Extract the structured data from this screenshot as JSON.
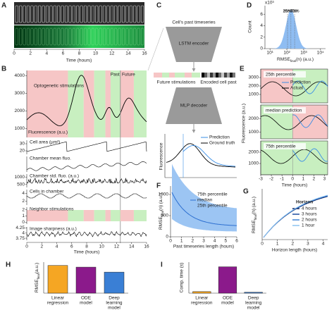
{
  "panels": {
    "A": {
      "label": "A",
      "xlim": [
        0,
        16
      ],
      "xticks": [
        0,
        2,
        4,
        6,
        8,
        10,
        12,
        14,
        16
      ],
      "xlabel": "Time (hours)"
    },
    "B": {
      "label": "B",
      "annotations": [
        "Optogenetic stimulations",
        "Past",
        "Future"
      ],
      "ylabel": "Fluorescence (a.u.)",
      "ylim": [
        500,
        4300
      ],
      "yticks": [
        1000,
        2000,
        3000,
        4000
      ],
      "tracks": [
        {
          "name": "Cell area (µm²)",
          "ylim": [
            15,
            35
          ],
          "yticks": [
            20,
            30
          ]
        },
        {
          "name": "Chamber mean fluo.",
          "ylim": [
            0,
            5000
          ],
          "yticks": []
        },
        {
          "name": "Chamber std. fluo. (a.u.)",
          "ylim": [
            300,
            1200
          ],
          "yticks": [
            500,
            1000
          ]
        },
        {
          "name": "Cells in chamber",
          "ylim": [
            1,
            5
          ],
          "yticks": [
            2,
            4
          ]
        },
        {
          "name": "Neighbor stimulations",
          "ylim": [
            -0.3,
            2.4
          ],
          "yticks": [
            0,
            1,
            2
          ]
        },
        {
          "name": "Image sharpness (a.u.)",
          "ylim": [
            3.65,
            4.3
          ],
          "yticks": [
            3.75,
            4,
            4.25
          ]
        }
      ],
      "xlim": [
        0,
        16
      ],
      "xticks": [
        0,
        2,
        4,
        6,
        8,
        10,
        12,
        14,
        16
      ],
      "xlabel": "Time (hours)"
    },
    "C": {
      "label": "C",
      "texts": [
        "Cell's past timeseries",
        "LSTM encoder",
        "Future stimulations",
        "Encoded cell past",
        "MLP decoder",
        "Fluorescence"
      ],
      "legend": [
        "Prediction",
        "Ground truth"
      ]
    },
    "D": {
      "label": "D",
      "ylabel": "Count",
      "xlabel": [
        "RMSE",
        "final",
        "(n) (a.u.)"
      ],
      "multiplier": "x10³",
      "markers": [
        "25%",
        "median",
        "75%"
      ],
      "xlim": [
        5,
        20000
      ],
      "xticks": [
        {
          "value": 10,
          "label": "10¹"
        },
        {
          "value": 100,
          "label": "10²"
        },
        {
          "value": 1000,
          "label": "10³"
        },
        {
          "value": 10000,
          "label": "10⁴"
        }
      ],
      "ylim": [
        0,
        7.5
      ],
      "yticks": [
        0,
        2,
        4,
        6
      ]
    },
    "E": {
      "label": "E",
      "ylabel": "Fluorescence (a.u.)",
      "xlabel": "Time (hours)",
      "xlim": [
        -3,
        3.3
      ],
      "xticks": [
        -3,
        -2,
        -1,
        0,
        1,
        2,
        3
      ],
      "legend": [
        "Prediction",
        "Actual"
      ],
      "subpanels": [
        {
          "title": "25th percentile",
          "ylim": [
            0,
            4000
          ],
          "yticks": [
            1000,
            2000,
            3000
          ]
        },
        {
          "title": "median prediction",
          "ylim": [
            500,
            3000
          ],
          "yticks": [
            1000,
            2000
          ]
        },
        {
          "title": "75th percentile",
          "ylim": [
            0,
            3000
          ],
          "yticks": [
            1000,
            2000
          ]
        }
      ]
    },
    "F": {
      "label": "F",
      "ylabel": [
        "RMSE",
        "final",
        "(n) (a.u.)"
      ],
      "xlabel": "Past timeseries length (hours)",
      "legend": [
        "75th percentile",
        "median",
        "25th percentile"
      ],
      "xlim": [
        0,
        6
      ],
      "xticks": [
        0,
        1,
        2,
        3,
        4,
        5,
        6
      ],
      "ylim": [
        0,
        1200
      ],
      "yticks": [
        0,
        500,
        1000
      ]
    },
    "G": {
      "label": "G",
      "ylabel": [
        "RMSE",
        "final",
        "(h) (a.u.)"
      ],
      "xlabel": "Horizon length (hours)",
      "xlim": [
        0,
        4.3
      ],
      "xticks": [
        0,
        1,
        2,
        3,
        4
      ],
      "legend_title": "Horizon",
      "series": [
        {
          "name": "4 hours",
          "color": "#0b1f5c"
        },
        {
          "name": "3 hours",
          "color": "#1f4fa0"
        },
        {
          "name": "2 hours",
          "color": "#3d82d6"
        },
        {
          "name": "1 hour",
          "color": "#8cc2f0"
        }
      ]
    },
    "H": {
      "label": "H",
      "type": "bar",
      "ylabel": [
        "RMSE",
        "final",
        "(a.u.)"
      ],
      "categories": [
        [
          "Linear",
          "regression"
        ],
        [
          "ODE",
          "model"
        ],
        [
          "Deep",
          "learning",
          "model"
        ]
      ],
      "values": [
        250,
        235,
        190
      ],
      "colors": [
        "#f5a623",
        "#8b1a8b",
        "#3a7fd5"
      ],
      "ylim": [
        0,
        280
      ]
    },
    "I": {
      "label": "I",
      "type": "bar",
      "ylabel": "Comp. time (s)",
      "categories": [
        [
          "Linear",
          "regression"
        ],
        [
          "ODE",
          "model"
        ],
        [
          "Deep",
          "learning",
          "model"
        ]
      ],
      "values": [
        0.05,
        0.85,
        0.03
      ],
      "colors": [
        "#f5a623",
        "#8b1a8b",
        "#3a7fd5"
      ],
      "ylim": [
        0,
        1
      ]
    }
  }
}
